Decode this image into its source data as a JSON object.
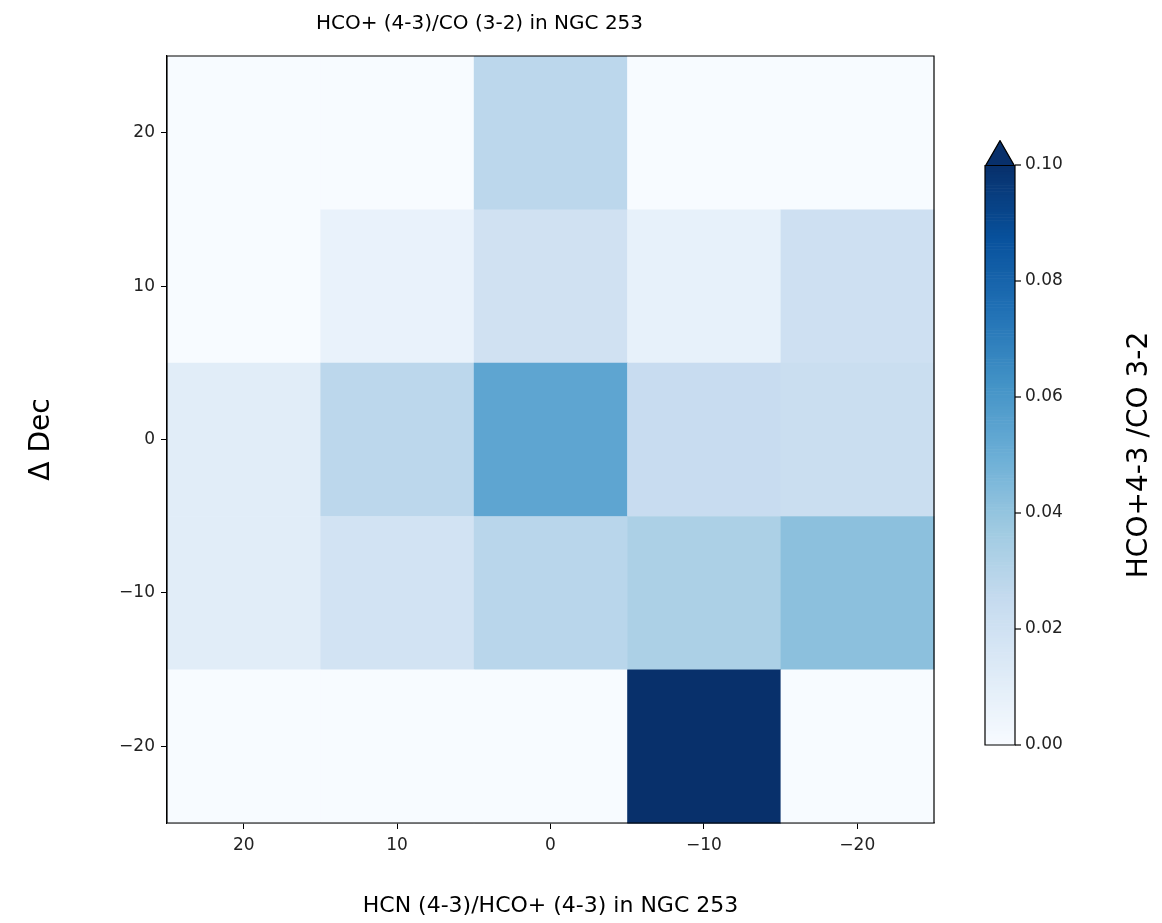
{
  "chart_data": {
    "type": "heatmap",
    "title": "HCO+ (4-3)/CO (3-2) in NGC 253",
    "xlabel": "HCN (4-3)/HCO+ (4-3) in NGC 253",
    "ylabel": "Δ Dec",
    "clabel": "HCO+4-3 /CO 3-2",
    "categories": [
      "20",
      "10",
      "0",
      "−10",
      "−20"
    ],
    "y_categories": [
      "20",
      "10",
      "0",
      "−10",
      "−20"
    ],
    "cells": [
      [
        0,
        0,
        0.028,
        0,
        0
      ],
      [
        0,
        0.007,
        0.02,
        0.008,
        0.021
      ],
      [
        0.011,
        0.028,
        0.054,
        0.024,
        0.023
      ],
      [
        0.011,
        0.019,
        0.029,
        0.033,
        0.042
      ],
      [
        0,
        0,
        0,
        0.1,
        0
      ]
    ],
    "clim": [
      0,
      0.1
    ],
    "cticks": [
      {
        "value": 0,
        "label": "0.00"
      },
      {
        "value": 0.02,
        "label": "0.02"
      },
      {
        "value": 0.04,
        "label": "0.04"
      },
      {
        "value": 0.06,
        "label": "0.06"
      },
      {
        "value": 0.08,
        "label": "0.08"
      },
      {
        "value": 0.1,
        "label": "0.10"
      }
    ]
  }
}
